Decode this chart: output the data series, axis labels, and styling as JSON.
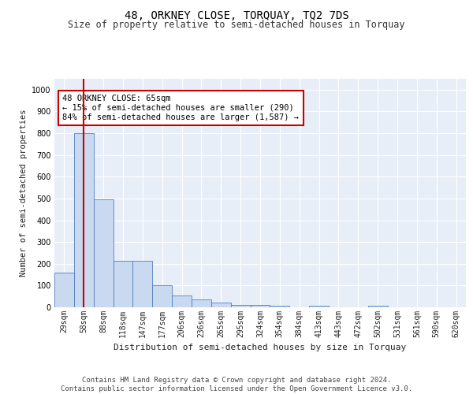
{
  "title": "48, ORKNEY CLOSE, TORQUAY, TQ2 7DS",
  "subtitle": "Size of property relative to semi-detached houses in Torquay",
  "xlabel": "Distribution of semi-detached houses by size in Torquay",
  "ylabel": "Number of semi-detached properties",
  "categories": [
    "29sqm",
    "58sqm",
    "88sqm",
    "118sqm",
    "147sqm",
    "177sqm",
    "206sqm",
    "236sqm",
    "265sqm",
    "295sqm",
    "324sqm",
    "354sqm",
    "384sqm",
    "413sqm",
    "443sqm",
    "472sqm",
    "502sqm",
    "531sqm",
    "561sqm",
    "590sqm",
    "620sqm"
  ],
  "values": [
    160,
    800,
    495,
    215,
    215,
    100,
    55,
    38,
    20,
    12,
    10,
    8,
    0,
    8,
    0,
    0,
    8,
    0,
    0,
    0,
    0
  ],
  "bar_color": "#c8d9f0",
  "bar_edge_color": "#5080c0",
  "property_bin_index": 1,
  "property_marker_color": "#cc0000",
  "annotation_text": "48 ORKNEY CLOSE: 65sqm\n← 15% of semi-detached houses are smaller (290)\n84% of semi-detached houses are larger (1,587) →",
  "annotation_box_color": "#ffffff",
  "annotation_box_edge": "#cc0000",
  "ylim": [
    0,
    1050
  ],
  "background_color": "#e8eef8",
  "grid_color": "#ffffff",
  "footer_text": "Contains HM Land Registry data © Crown copyright and database right 2024.\nContains public sector information licensed under the Open Government Licence v3.0.",
  "title_fontsize": 10,
  "subtitle_fontsize": 8.5,
  "xlabel_fontsize": 8,
  "ylabel_fontsize": 7.5,
  "tick_fontsize": 7,
  "annotation_fontsize": 7.5,
  "footer_fontsize": 6.5
}
